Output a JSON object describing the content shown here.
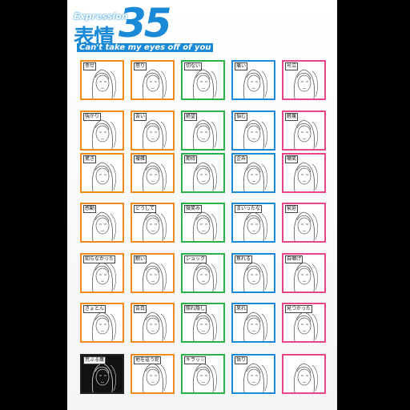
{
  "header": {
    "small": "Expression",
    "kanji": "表情",
    "number": "35",
    "subtitle": "Can't take my eyes off of you"
  },
  "panels": [
    {
      "label": "幸せ",
      "color": "#f08a1a"
    },
    {
      "label": "怒り",
      "color": "#f08a1a"
    },
    {
      "label": "切ない",
      "color": "#2ab24a"
    },
    {
      "label": "痛い",
      "color": "#1a8ad6"
    },
    {
      "label": "号泣",
      "color": "#e8458c"
    },
    {
      "label": "強がり",
      "color": "#f08a1a"
    },
    {
      "label": "苦い",
      "color": "#f08a1a"
    },
    {
      "label": "絶望",
      "color": "#2ab24a"
    },
    {
      "label": "悩む",
      "color": "#1a8ad6"
    },
    {
      "label": "軽蔑",
      "color": "#e8458c"
    },
    {
      "label": "驚き",
      "color": "#f08a1a"
    },
    {
      "label": "複雑",
      "color": "#f08a1a"
    },
    {
      "label": "期待",
      "color": "#2ab24a"
    },
    {
      "label": "企み",
      "color": "#1a8ad6"
    },
    {
      "label": "嘲笑",
      "color": "#e8458c"
    },
    {
      "label": "感動",
      "color": "#f08a1a"
    },
    {
      "label": "どうして",
      "color": "#f08a1a"
    },
    {
      "label": "微笑み",
      "color": "#2ab24a"
    },
    {
      "label": "まいったな",
      "color": "#1a8ad6"
    },
    {
      "label": "緊迫",
      "color": "#e8458c"
    },
    {
      "label": "知らなかった",
      "color": "#f08a1a"
    },
    {
      "label": "眠い",
      "color": "#f08a1a"
    },
    {
      "label": "ショック",
      "color": "#2ab24a"
    },
    {
      "label": "焦れる",
      "color": "#1a8ad6"
    },
    {
      "label": "自嘲げ",
      "color": "#e8458c"
    },
    {
      "label": "きょとん",
      "color": "#f08a1a"
    },
    {
      "label": "告白",
      "color": "#f08a1a"
    },
    {
      "label": "照れ隠し",
      "color": "#2ab24a"
    },
    {
      "label": "呆れ",
      "color": "#1a8ad6"
    },
    {
      "label": "見つかった",
      "color": "#e8458c"
    },
    {
      "label": "荒ぶる鷹",
      "color": "#222222",
      "dark": true
    },
    {
      "label": "地を這う蛇",
      "color": "#f08a1a"
    },
    {
      "label": "キラッ☆",
      "color": "#2ab24a"
    },
    {
      "label": "悟り",
      "color": "#1a8ad6"
    },
    {
      "label": "",
      "color": "#e8458c"
    }
  ]
}
